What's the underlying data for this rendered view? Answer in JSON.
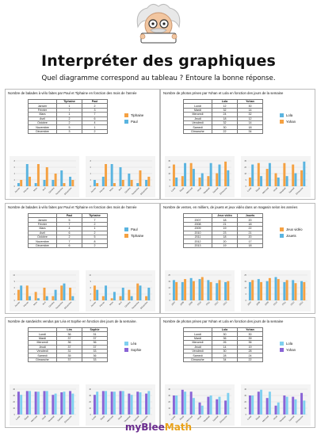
{
  "header": {
    "title": "Interpréter des graphiques",
    "subtitle": "Quel diagramme correspond au tableau ? Entoure la bonne réponse."
  },
  "footer": {
    "brand_part1": "myBlee",
    "brand_part2": "Math"
  },
  "colors": {
    "orange": "#f5a142",
    "blue": "#5ab4e0",
    "purple": "#8a64d6",
    "lightblue": "#7fd0f0"
  },
  "panels": [
    {
      "title": "Nombre de balades à vélo faites par Paul et Tiphaine en fonction des mois de l'année",
      "columns": [
        "",
        "Tiphaine",
        "Paul"
      ],
      "rows": [
        [
          "Janvier",
          "1",
          "2"
        ],
        [
          "Février",
          "7",
          "3"
        ],
        [
          "Mars",
          "1",
          "7"
        ],
        [
          "Avril",
          "2",
          "6"
        ],
        [
          "Octobre",
          "2",
          "4"
        ],
        [
          "Novembre",
          "5",
          "1"
        ],
        [
          "Décembre",
          "3",
          "2"
        ]
      ],
      "legend": [
        "Tiphaine",
        "Paul"
      ]
    },
    {
      "title": "Nombre de photos prises par Yohan et Lola en fonction des jours de la semaine",
      "columns": [
        "",
        "Lola",
        "Yohan"
      ],
      "rows": [
        [
          "Lundi",
          "12",
          "30"
        ],
        [
          "Mardi",
          "32",
          "14"
        ],
        [
          "Mercredi",
          "24",
          "32"
        ],
        [
          "Jeudi",
          "18",
          "12"
        ],
        [
          "Vendredi",
          "32",
          "14"
        ],
        [
          "Samedi",
          "30",
          "18"
        ],
        [
          "Dimanche",
          "22",
          "34"
        ]
      ],
      "legend": [
        "Lola",
        "Yohan"
      ]
    },
    {
      "title": "Nombre de balades à vélo faites par Paul et Tiphaine en fonction des mois de l'année",
      "columns": [
        "",
        "Paul",
        "Tiphaine"
      ],
      "rows": [
        [
          "Janvier",
          "5",
          "7"
        ],
        [
          "Février",
          "7",
          "2"
        ],
        [
          "Mars",
          "4",
          "1"
        ],
        [
          "Avril",
          "6",
          "2"
        ],
        [
          "Octobre",
          "2",
          "5"
        ],
        [
          "Novembre",
          "7",
          "8"
        ],
        [
          "Décembre",
          "6",
          "2"
        ]
      ],
      "legend": [
        "Paul",
        "Tiphaine"
      ]
    },
    {
      "title": "Nombre de ventes, en milliers, de jouets et jeux vidéo dans un magasin selon les années",
      "columns": [
        "",
        "Jeux vidéo",
        "Jouets"
      ],
      "rows": [
        [
          "2007",
          "18",
          "20"
        ],
        [
          "2008",
          "21",
          "18"
        ],
        [
          "2009",
          "19",
          "22"
        ],
        [
          "2010",
          "23",
          "21"
        ],
        [
          "2011",
          "18",
          "20"
        ],
        [
          "2012",
          "20",
          "17"
        ],
        [
          "2013",
          "19",
          "18"
        ]
      ],
      "legend": [
        "Jeux vidéo",
        "Jouets"
      ]
    },
    {
      "title": "Nombre de sandwichs vendus par Léa et Sophie en fonction des jours de la semaine.",
      "columns": [
        "",
        "Léa",
        "Sophie"
      ],
      "rows": [
        [
          "Lundi",
          "36",
          "31"
        ],
        [
          "Mardi",
          "37",
          "37"
        ],
        [
          "Mercredi",
          "36",
          "36"
        ],
        [
          "Jeudi",
          "37",
          "37"
        ],
        [
          "Vendredi",
          "31",
          "33"
        ],
        [
          "Samedi",
          "35",
          "36"
        ],
        [
          "Dimanche",
          "37",
          "33"
        ]
      ],
      "legend": [
        "Léa",
        "Sophie"
      ]
    },
    {
      "title": "Nombre de photos prises par Yohan et Lola en fonction des jours de la semaine",
      "columns": [
        "",
        "Lola",
        "Yohan"
      ],
      "rows": [
        [
          "Lundi",
          "30",
          "30"
        ],
        [
          "Mardi",
          "36",
          "39"
        ],
        [
          "Mercredi",
          "26",
          "36"
        ],
        [
          "Jeudi",
          "14",
          "19"
        ],
        [
          "Vendredi",
          "30",
          "28"
        ],
        [
          "Samedi",
          "28",
          "24"
        ],
        [
          "Dimanche",
          "34",
          "22"
        ]
      ],
      "legend": [
        "Lola",
        "Yohan"
      ]
    }
  ],
  "chart_data": [
    {
      "type": "bar",
      "categories": [
        "Janvier",
        "Février",
        "Mars",
        "Avril",
        "Octobre",
        "Novembre",
        "Décembre"
      ],
      "ylim": [
        0,
        8
      ],
      "series": [
        {
          "values": [
            1,
            7,
            1,
            2,
            2,
            5,
            3
          ]
        },
        {
          "values": [
            2,
            3,
            7,
            6,
            4,
            1,
            2
          ]
        }
      ]
    },
    {
      "type": "bar",
      "categories": [
        "Janvier",
        "Février",
        "Mars",
        "Avril",
        "Octobre",
        "Novembre",
        "Décembre"
      ],
      "ylim": [
        0,
        8
      ],
      "series": [
        {
          "values": [
            2,
            3,
            7,
            6,
            4,
            1,
            2
          ]
        },
        {
          "values": [
            1,
            7,
            1,
            2,
            2,
            5,
            3
          ]
        }
      ]
    },
    {
      "type": "bar",
      "categories": [
        "Lundi",
        "Mardi",
        "Mercredi",
        "Jeudi",
        "Vendredi",
        "Samedi",
        "Dimanche"
      ],
      "ylim": [
        0,
        35
      ],
      "series": [
        {
          "values": [
            30,
            14,
            32,
            12,
            14,
            18,
            34
          ]
        },
        {
          "values": [
            12,
            32,
            24,
            18,
            32,
            30,
            22
          ]
        }
      ]
    },
    {
      "type": "bar",
      "categories": [
        "Lundi",
        "Mardi",
        "Mercredi",
        "Jeudi",
        "Vendredi",
        "Samedi",
        "Dimanche"
      ],
      "ylim": [
        0,
        35
      ],
      "series": [
        {
          "values": [
            12,
            32,
            24,
            18,
            32,
            30,
            22
          ]
        },
        {
          "values": [
            30,
            14,
            32,
            12,
            14,
            18,
            34
          ]
        }
      ]
    },
    {
      "type": "bar",
      "categories": [
        "Janvier",
        "Février",
        "Mars",
        "Avril",
        "Octobre",
        "Novembre",
        "Décembre"
      ],
      "ylim": [
        0,
        12
      ],
      "series": [
        {
          "values": [
            5,
            7,
            4,
            6,
            2,
            7,
            6
          ]
        },
        {
          "values": [
            7,
            2,
            1,
            2,
            5,
            8,
            2
          ]
        }
      ]
    },
    {
      "type": "bar",
      "categories": [
        "Janvier",
        "Février",
        "Mars",
        "Avril",
        "Octobre",
        "Novembre",
        "Décembre"
      ],
      "ylim": [
        0,
        12
      ],
      "series": [
        {
          "values": [
            7,
            2,
            1,
            2,
            5,
            8,
            2
          ]
        },
        {
          "values": [
            5,
            7,
            4,
            6,
            2,
            7,
            6
          ]
        }
      ]
    },
    {
      "type": "bar",
      "categories": [
        "2007",
        "2008",
        "2009",
        "2010",
        "2011",
        "2012",
        "2013"
      ],
      "ylim": [
        0,
        25
      ],
      "series": [
        {
          "values": [
            20,
            18,
            22,
            21,
            20,
            17,
            18
          ]
        },
        {
          "values": [
            18,
            21,
            19,
            23,
            18,
            20,
            19
          ]
        }
      ]
    },
    {
      "type": "bar",
      "categories": [
        "2007",
        "2008",
        "2009",
        "2010",
        "2011",
        "2012",
        "2013"
      ],
      "ylim": [
        0,
        25
      ],
      "series": [
        {
          "values": [
            18,
            21,
            19,
            23,
            18,
            20,
            19
          ]
        },
        {
          "values": [
            20,
            18,
            22,
            21,
            20,
            17,
            18
          ]
        }
      ]
    },
    {
      "type": "bar",
      "categories": [
        "Lundi",
        "Mardi",
        "Mercredi",
        "Jeudi",
        "Vendredi",
        "Samedi",
        "Dimanche"
      ],
      "ylim": [
        0,
        40
      ],
      "series": [
        {
          "values": [
            36,
            37,
            36,
            37,
            31,
            35,
            37
          ]
        },
        {
          "values": [
            31,
            37,
            36,
            37,
            33,
            36,
            33
          ]
        }
      ]
    },
    {
      "type": "bar",
      "categories": [
        "Lundi",
        "Mardi",
        "Mercredi",
        "Jeudi",
        "Vendredi",
        "Samedi",
        "Dimanche"
      ],
      "ylim": [
        0,
        40
      ],
      "series": [
        {
          "values": [
            31,
            37,
            36,
            37,
            33,
            36,
            33
          ]
        },
        {
          "values": [
            36,
            37,
            36,
            37,
            31,
            35,
            37
          ]
        }
      ]
    },
    {
      "type": "bar",
      "categories": [
        "Lundi",
        "Mardi",
        "Mercredi",
        "Jeudi",
        "Vendredi",
        "Samedi",
        "Dimanche"
      ],
      "ylim": [
        0,
        40
      ],
      "series": [
        {
          "values": [
            30,
            39,
            36,
            19,
            28,
            24,
            22
          ]
        },
        {
          "values": [
            30,
            36,
            26,
            14,
            30,
            28,
            34
          ]
        }
      ]
    },
    {
      "type": "bar",
      "categories": [
        "Lundi",
        "Mardi",
        "Mercredi",
        "Jeudi",
        "Vendredi",
        "Samedi",
        "Dimanche"
      ],
      "ylim": [
        0,
        40
      ],
      "series": [
        {
          "values": [
            30,
            36,
            26,
            14,
            30,
            28,
            34
          ]
        },
        {
          "values": [
            30,
            39,
            36,
            19,
            28,
            24,
            22
          ]
        }
      ]
    }
  ]
}
